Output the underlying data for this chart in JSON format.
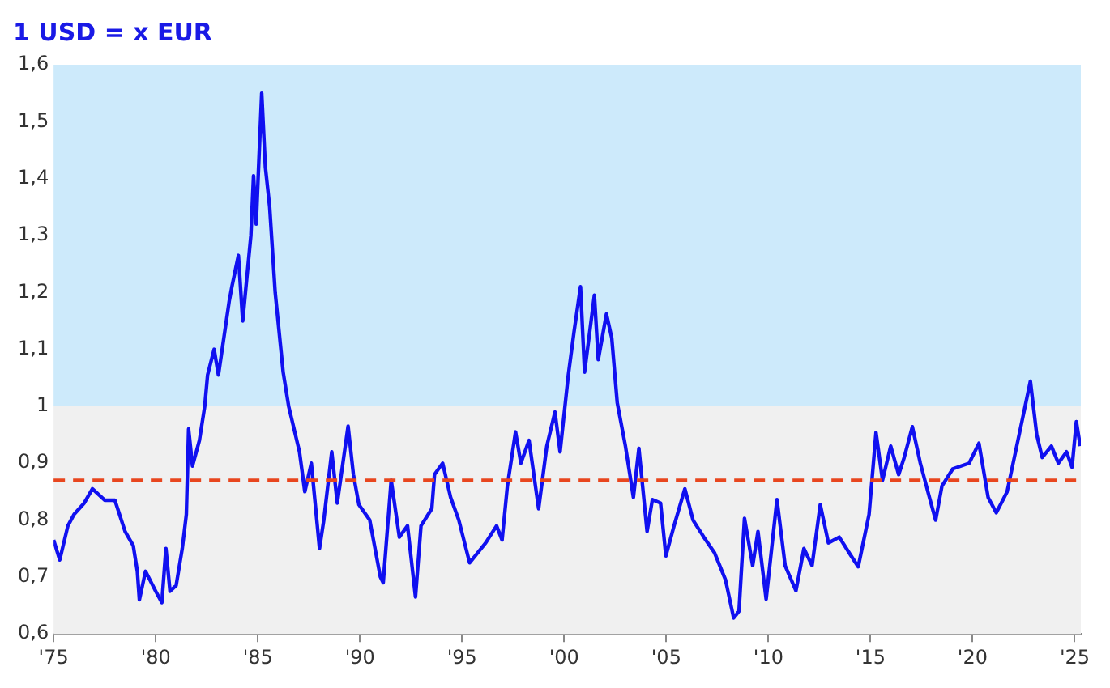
{
  "chart_data": {
    "type": "line",
    "title": "1 USD = x EUR",
    "x": [
      1975.0,
      1975.3,
      1975.7,
      1976.0,
      1976.5,
      1976.9,
      1977.5,
      1978.0,
      1978.5,
      1978.9,
      1979.1,
      1979.2,
      1979.5,
      1980.0,
      1980.3,
      1980.5,
      1980.7,
      1981.0,
      1981.3,
      1981.5,
      1981.61,
      1981.8,
      1982.14,
      1982.4,
      1982.54,
      1982.86,
      1983.07,
      1983.6,
      1983.73,
      1984.05,
      1984.26,
      1984.66,
      1984.79,
      1984.92,
      1985.19,
      1985.37,
      1985.58,
      1985.85,
      1986.24,
      1986.51,
      1987.04,
      1987.3,
      1987.62,
      1988.02,
      1988.23,
      1988.62,
      1988.89,
      1989.42,
      1989.68,
      1989.95,
      1990.48,
      1991.0,
      1991.14,
      1991.53,
      1991.93,
      1992.33,
      1992.72,
      1992.99,
      1993.52,
      1993.65,
      1994.05,
      1994.44,
      1994.84,
      1995.37,
      1996.16,
      1996.69,
      1996.96,
      1997.22,
      1997.62,
      1997.88,
      1998.28,
      1998.75,
      1999.15,
      1999.55,
      1999.8,
      2000.2,
      2000.48,
      2000.8,
      2001.0,
      2001.48,
      2001.67,
      2002.07,
      2002.33,
      2002.6,
      2003.0,
      2003.39,
      2003.66,
      2004.06,
      2004.32,
      2004.72,
      2004.98,
      2005.38,
      2005.91,
      2006.31,
      2006.84,
      2007.37,
      2007.9,
      2008.3,
      2008.56,
      2008.83,
      2009.23,
      2009.49,
      2009.89,
      2010.42,
      2010.82,
      2011.35,
      2011.74,
      2012.14,
      2012.54,
      2012.94,
      2013.47,
      2014.0,
      2014.4,
      2014.93,
      2015.27,
      2015.59,
      2015.99,
      2016.38,
      2016.65,
      2017.05,
      2017.44,
      2017.84,
      2018.19,
      2018.5,
      2019.03,
      2019.83,
      2020.31,
      2020.76,
      2021.16,
      2021.69,
      2022.22,
      2022.83,
      2023.14,
      2023.41,
      2023.86,
      2024.2,
      2024.6,
      2024.87,
      2025.08,
      2025.27
    ],
    "series": [
      {
        "color": "#1010f0",
        "values": [
          0.765,
          0.73,
          0.79,
          0.81,
          0.83,
          0.855,
          0.835,
          0.835,
          0.78,
          0.755,
          0.71,
          0.66,
          0.71,
          0.675,
          0.655,
          0.75,
          0.675,
          0.685,
          0.75,
          0.81,
          0.96,
          0.895,
          0.94,
          1.0,
          1.055,
          1.1,
          1.055,
          1.185,
          1.21,
          1.265,
          1.15,
          1.3,
          1.405,
          1.32,
          1.55,
          1.42,
          1.35,
          1.2,
          1.06,
          1.0,
          0.92,
          0.85,
          0.9,
          0.75,
          0.8,
          0.92,
          0.83,
          0.965,
          0.88,
          0.827,
          0.8,
          0.7,
          0.69,
          0.87,
          0.77,
          0.79,
          0.665,
          0.79,
          0.82,
          0.88,
          0.9,
          0.84,
          0.8,
          0.725,
          0.76,
          0.79,
          0.765,
          0.86,
          0.955,
          0.9,
          0.94,
          0.82,
          0.93,
          0.99,
          0.92,
          1.054,
          1.13,
          1.21,
          1.06,
          1.195,
          1.082,
          1.162,
          1.12,
          1.006,
          0.93,
          0.84,
          0.926,
          0.78,
          0.836,
          0.83,
          0.737,
          0.79,
          0.855,
          0.8,
          0.77,
          0.742,
          0.695,
          0.628,
          0.64,
          0.803,
          0.72,
          0.78,
          0.661,
          0.836,
          0.72,
          0.676,
          0.75,
          0.72,
          0.827,
          0.76,
          0.77,
          0.74,
          0.718,
          0.81,
          0.954,
          0.87,
          0.93,
          0.88,
          0.91,
          0.964,
          0.9,
          0.846,
          0.8,
          0.86,
          0.89,
          0.9,
          0.935,
          0.84,
          0.813,
          0.85,
          0.94,
          1.044,
          0.95,
          0.91,
          0.93,
          0.9,
          0.92,
          0.893,
          0.973,
          0.93
        ]
      }
    ],
    "xlim": [
      1975,
      2025.3
    ],
    "xticks": [
      {
        "value": 1975,
        "label": "'75"
      },
      {
        "value": 1980,
        "label": "'80"
      },
      {
        "value": 1985,
        "label": "'85"
      },
      {
        "value": 1990,
        "label": "'90"
      },
      {
        "value": 1995,
        "label": "'95"
      },
      {
        "value": 2000,
        "label": "'00"
      },
      {
        "value": 2005,
        "label": "'05"
      },
      {
        "value": 2010,
        "label": "'10"
      },
      {
        "value": 2015,
        "label": "'15"
      },
      {
        "value": 2020,
        "label": "'20"
      },
      {
        "value": 2025,
        "label": "'25"
      }
    ],
    "ylim": [
      0.6,
      1.6
    ],
    "yticks": [
      {
        "value": 0.6,
        "label": "0,6"
      },
      {
        "value": 0.7,
        "label": "0,7"
      },
      {
        "value": 0.8,
        "label": "0,8"
      },
      {
        "value": 0.9,
        "label": "0,9"
      },
      {
        "value": 1,
        "label": "1"
      },
      {
        "value": 1.1,
        "label": "1,1"
      },
      {
        "value": 1.2,
        "label": "1,2"
      },
      {
        "value": 1.3,
        "label": "1,3"
      },
      {
        "value": 1.4,
        "label": "1,4"
      },
      {
        "value": 1.5,
        "label": "1,5"
      },
      {
        "value": 1.6,
        "label": "1,6"
      }
    ],
    "bands": [
      {
        "axis": "y",
        "from": 1,
        "to": 1.6,
        "color": "#cdeafb"
      },
      {
        "axis": "y",
        "from": 0.6,
        "to": 1,
        "color": "#f0f0f0"
      }
    ],
    "ref_lines": [
      {
        "axis": "y",
        "value": 0.87,
        "color": "#e8461e",
        "line_style": "dashed"
      }
    ],
    "grid": false,
    "legend": false,
    "marker": "none",
    "line_style": "solid"
  }
}
